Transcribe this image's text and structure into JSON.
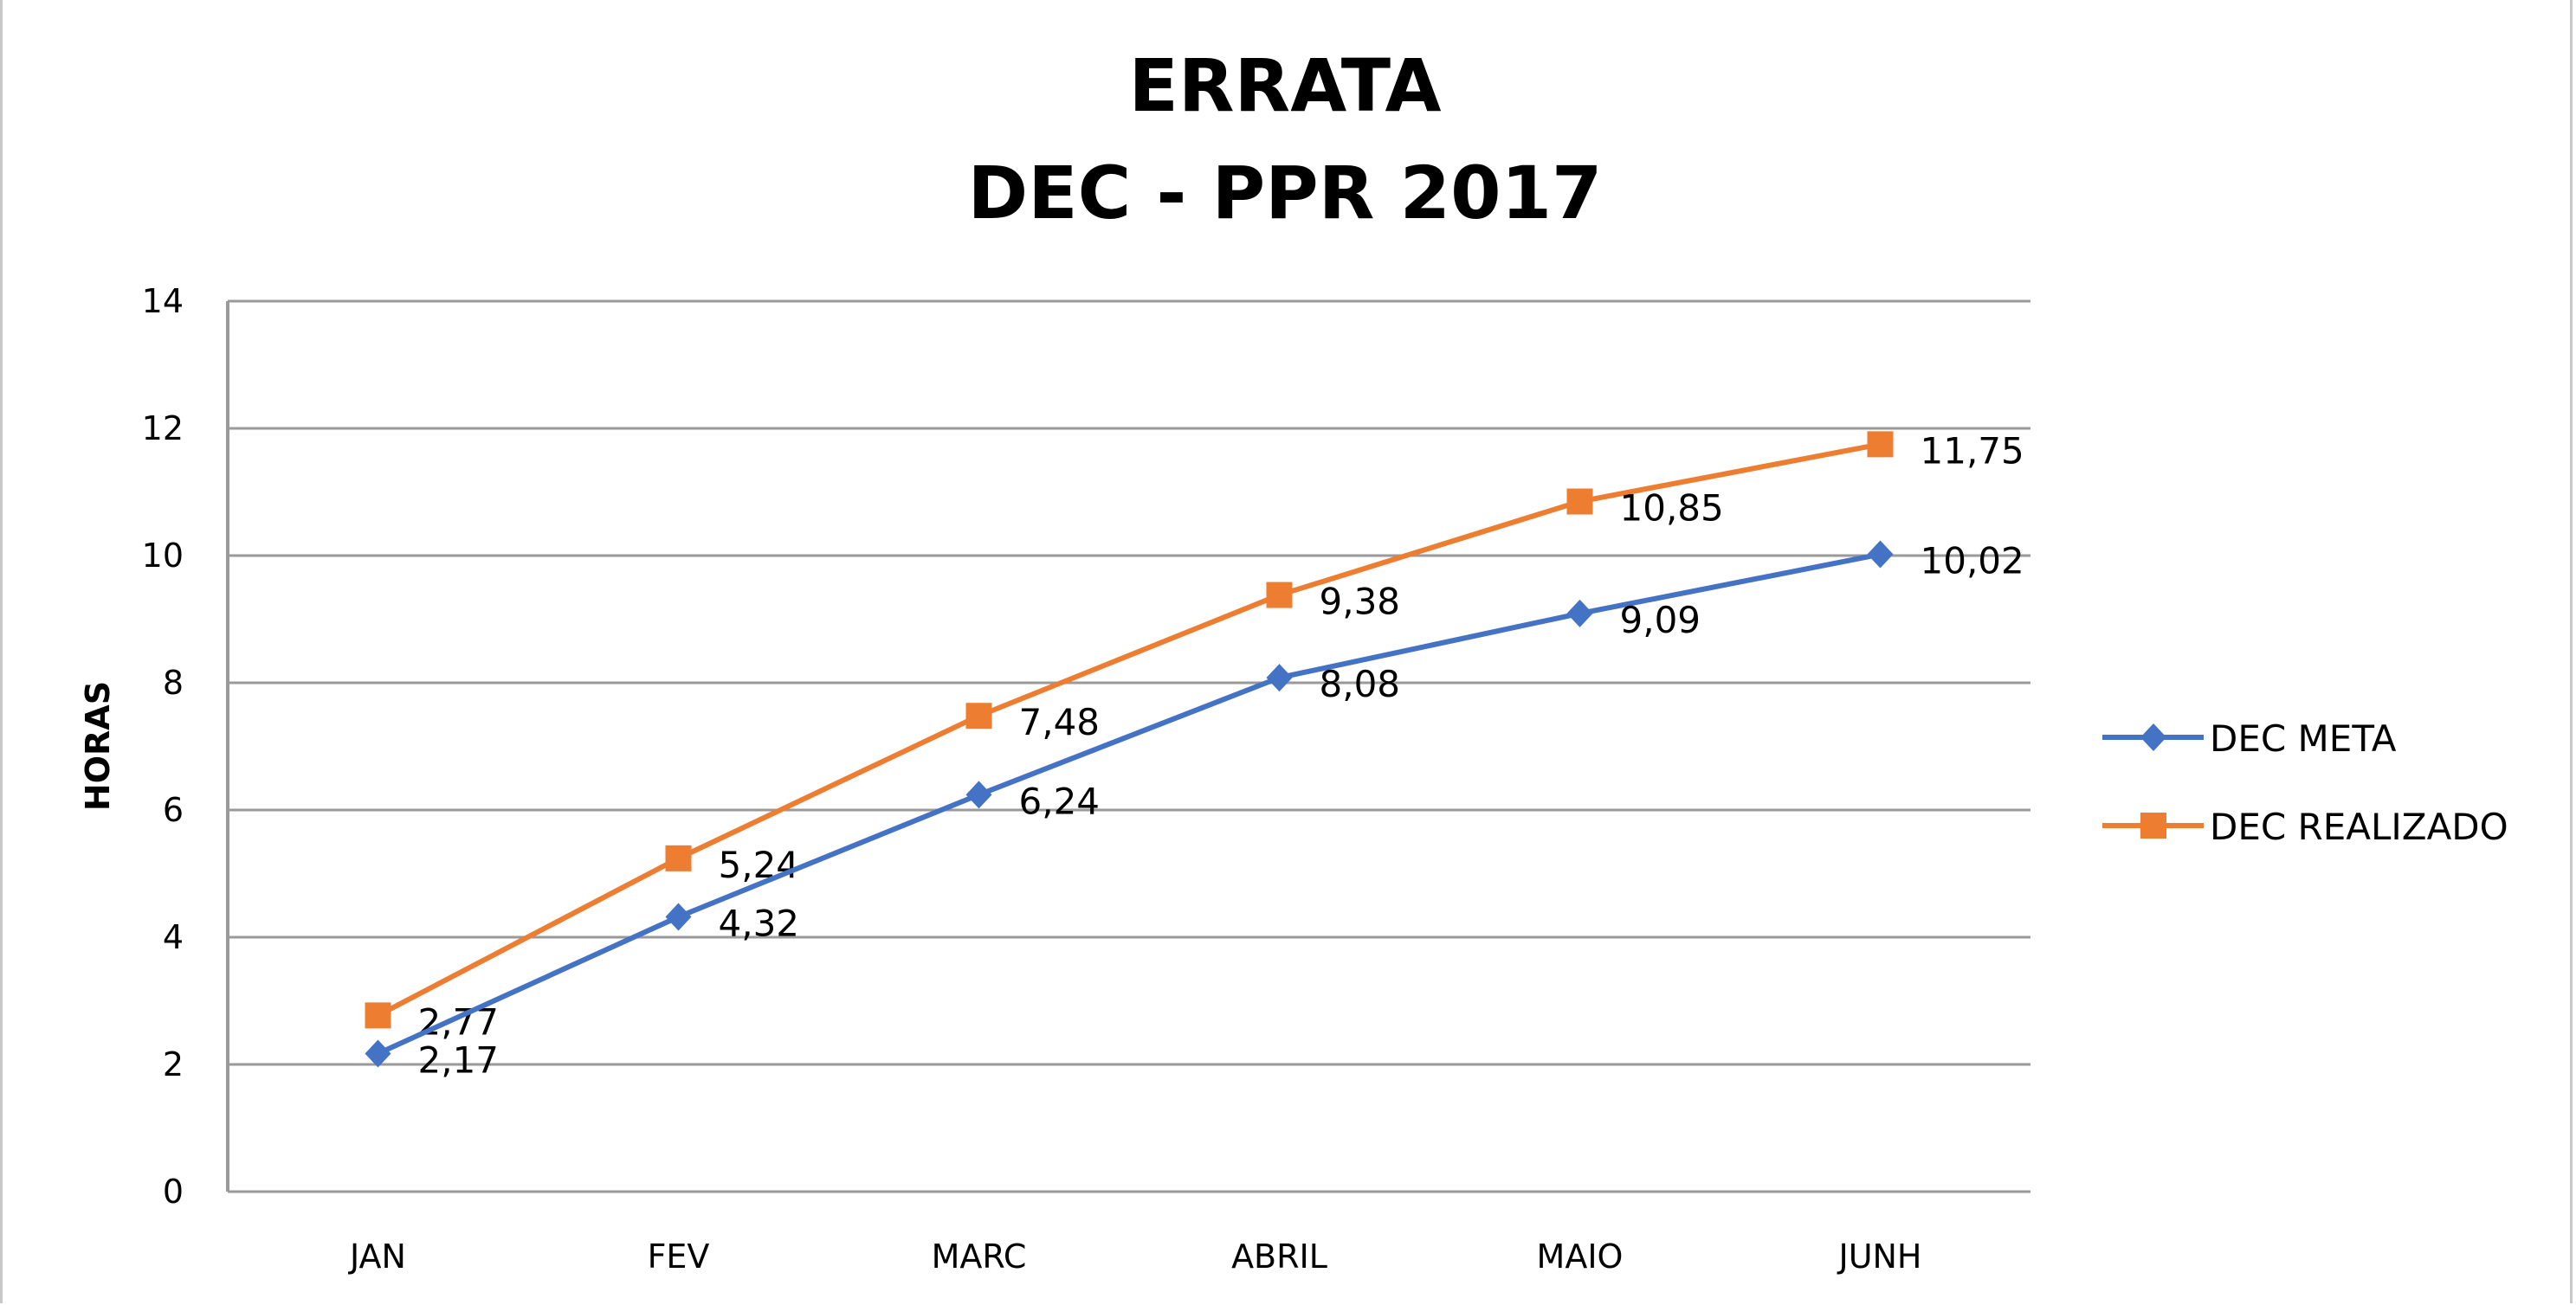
{
  "chart_data": {
    "type": "line",
    "title": [
      "ERRATA",
      "DEC - PPR 2017"
    ],
    "xlabel": "",
    "ylabel": "HORAS",
    "categories": [
      "JAN",
      "FEV",
      "MARC",
      "ABRIL",
      "MAIO",
      "JUNH"
    ],
    "ylim": [
      0,
      14
    ],
    "yticks": [
      0,
      2,
      4,
      6,
      8,
      10,
      12,
      14
    ],
    "grid": true,
    "legend": "right",
    "series": [
      {
        "name": "DEC META",
        "color": "#4472C4",
        "marker": "diamond",
        "values": [
          2.17,
          4.32,
          6.24,
          8.08,
          9.09,
          10.02
        ],
        "labels": [
          "2,17",
          "4,32",
          "6,24",
          "8,08",
          "9,09",
          "10,02"
        ]
      },
      {
        "name": "DEC REALIZADO",
        "color": "#ED7D31",
        "marker": "square",
        "values": [
          2.77,
          5.24,
          7.48,
          9.38,
          10.85,
          11.75
        ],
        "labels": [
          "2,77",
          "5,24",
          "7,48",
          "9,38",
          "10,85",
          "11,75"
        ]
      }
    ]
  }
}
